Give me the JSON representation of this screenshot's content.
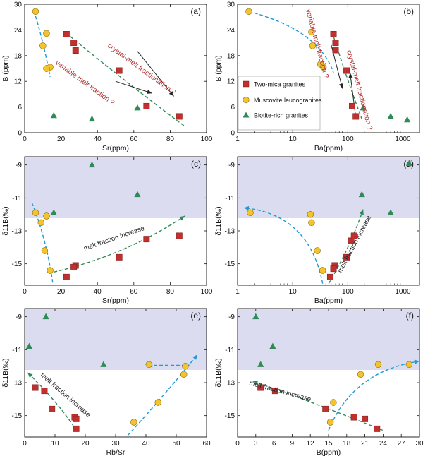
{
  "colors": {
    "two_mica": "#c0302e",
    "muscovite": "#f4c430",
    "biotite": "#2e8b57",
    "dashed_blue": "#1e9ad6",
    "dashed_green": "#2e8b57",
    "shade": "#dcdcf0"
  },
  "legend": {
    "items": [
      {
        "label": "Two-mica granites",
        "marker": "square"
      },
      {
        "label": "Muscovite leucogranites",
        "marker": "circle"
      },
      {
        "label": "Biotite-rich granites",
        "marker": "triangle"
      }
    ]
  },
  "chart_data": [
    {
      "id": "a",
      "type": "scatter",
      "letter": "(a)",
      "xlabel": "Sr(ppm)",
      "ylabel": "B (ppm)",
      "xlim": [
        0,
        100
      ],
      "ylim": [
        0,
        30
      ],
      "xticks": [
        "0",
        "20",
        "40",
        "60",
        "80",
        "100"
      ],
      "yticks": [
        "0",
        "6",
        "12",
        "18",
        "24",
        "30"
      ],
      "series": [
        {
          "name": "Two-mica granites",
          "points": [
            [
              23,
              23
            ],
            [
              27,
              21
            ],
            [
              28,
              19.2
            ],
            [
              52,
              14.5
            ],
            [
              67,
              6.2
            ],
            [
              85,
              3.8
            ]
          ]
        },
        {
          "name": "Muscovite leucogranites",
          "points": [
            [
              6,
              28.3
            ],
            [
              12,
              23.2
            ],
            [
              10,
              20.3
            ],
            [
              14,
              15.3
            ],
            [
              12,
              15
            ]
          ]
        },
        {
          "name": "Biotite-rich granites",
          "points": [
            [
              16,
              4
            ],
            [
              37,
              3.2
            ],
            [
              62,
              5.8
            ]
          ]
        }
      ],
      "annotations": [
        "crystal-melt fractionation ?",
        "variable melt fraction ?"
      ]
    },
    {
      "id": "b",
      "type": "scatter",
      "letter": "(b)",
      "xlabel": "Ba(ppm)",
      "ylabel": "B (ppm)",
      "xscale": "log",
      "xlim": [
        1,
        2000
      ],
      "ylim": [
        0,
        30
      ],
      "xticks": [
        "1",
        "10",
        "100",
        "1000"
      ],
      "yticks": [
        "0",
        "6",
        "12",
        "18",
        "24",
        "30"
      ],
      "series": [
        {
          "name": "Two-mica granites",
          "points": [
            [
              55,
              23
            ],
            [
              60,
              21
            ],
            [
              60,
              19.3
            ],
            [
              95,
              14.5
            ],
            [
              120,
              6.2
            ],
            [
              140,
              3.8
            ]
          ]
        },
        {
          "name": "Muscovite leucogranites",
          "points": [
            [
              1.6,
              28.3
            ],
            [
              22,
              23.5
            ],
            [
              23,
              20.3
            ],
            [
              32,
              16
            ],
            [
              36,
              15.3
            ]
          ]
        },
        {
          "name": "Biotite-rich granites",
          "points": [
            [
              190,
              5.8
            ],
            [
              600,
              3.8
            ],
            [
              1200,
              3
            ]
          ]
        }
      ],
      "annotations": [
        "variable melt fraction ?",
        "crystal-melt fractionation ?"
      ]
    },
    {
      "id": "c",
      "type": "scatter",
      "letter": "(c)",
      "xlabel": "Sr(ppm)",
      "ylabel": "δ11B(‰)",
      "xlim": [
        0,
        100
      ],
      "ylim": [
        -16.3,
        -8.5
      ],
      "xticks": [
        "0",
        "20",
        "40",
        "60",
        "80",
        "100"
      ],
      "yticks": [
        "-9",
        "-11",
        "-13",
        "-15"
      ],
      "shade_above": -12.2,
      "series": [
        {
          "name": "Two-mica granites",
          "points": [
            [
              23,
              -15.8
            ],
            [
              28,
              -15.1
            ],
            [
              27,
              -15.2
            ],
            [
              52,
              -14.6
            ],
            [
              67,
              -13.5
            ],
            [
              85,
              -13.3
            ]
          ]
        },
        {
          "name": "Muscovite leucogranites",
          "points": [
            [
              6,
              -11.9
            ],
            [
              12,
              -12.1
            ],
            [
              9,
              -12.5
            ],
            [
              11,
              -14.2
            ],
            [
              14,
              -15.4
            ]
          ]
        },
        {
          "name": "Biotite-rich granites",
          "points": [
            [
              16,
              -11.9
            ],
            [
              37,
              -9
            ],
            [
              62,
              -10.8
            ]
          ]
        }
      ],
      "annotations": [
        "melt fraction increase"
      ]
    },
    {
      "id": "d",
      "type": "scatter",
      "letter": "(d)",
      "xlabel": "Ba(ppm)",
      "ylabel": "δ11B(‰)",
      "xscale": "log",
      "xlim": [
        1,
        2000
      ],
      "ylim": [
        -16.3,
        -8.5
      ],
      "xticks": [
        "1",
        "10",
        "100",
        "1000"
      ],
      "yticks": [
        "-9",
        "-11",
        "-13",
        "-15"
      ],
      "shade_above": -12.2,
      "series": [
        {
          "name": "Two-mica granites",
          "points": [
            [
              48,
              -15.8
            ],
            [
              58,
              -15.1
            ],
            [
              55,
              -15.3
            ],
            [
              95,
              -14.6
            ],
            [
              115,
              -13.6
            ],
            [
              130,
              -13.3
            ]
          ]
        },
        {
          "name": "Muscovite leucogranites",
          "points": [
            [
              1.7,
              -11.9
            ],
            [
              21,
              -12
            ],
            [
              22,
              -12.5
            ],
            [
              28,
              -14.2
            ],
            [
              35,
              -15.4
            ]
          ]
        },
        {
          "name": "Biotite-rich granites",
          "points": [
            [
              180,
              -10.8
            ],
            [
              600,
              -11.9
            ],
            [
              1300,
              -8.9
            ]
          ]
        }
      ],
      "annotations": [
        "melt fraction increase"
      ]
    },
    {
      "id": "e",
      "type": "scatter",
      "letter": "(e)",
      "xlabel": "Rb/Sr",
      "ylabel": "δ11B(‰)",
      "xlim": [
        0,
        60
      ],
      "ylim": [
        -16.3,
        -8.5
      ],
      "xticks": [
        "0",
        "10",
        "20",
        "30",
        "40",
        "50",
        "60"
      ],
      "yticks": [
        "-9",
        "-11",
        "-13",
        "-15"
      ],
      "shade_above": -12.2,
      "series": [
        {
          "name": "Two-mica granites",
          "points": [
            [
              3.5,
              -13.3
            ],
            [
              6.5,
              -13.5
            ],
            [
              9,
              -14.6
            ],
            [
              16.5,
              -15.1
            ],
            [
              17,
              -15.2
            ],
            [
              17,
              -15.8
            ]
          ]
        },
        {
          "name": "Muscovite leucogranites",
          "points": [
            [
              41,
              -11.9
            ],
            [
              53,
              -12
            ],
            [
              52.5,
              -12.5
            ],
            [
              44,
              -14.2
            ],
            [
              36,
              -15.4
            ]
          ]
        },
        {
          "name": "Biotite-rich granites",
          "points": [
            [
              1.5,
              -10.8
            ],
            [
              7,
              -9
            ],
            [
              26,
              -11.9
            ]
          ]
        }
      ],
      "annotations": [
        "melt fraction increase"
      ]
    },
    {
      "id": "f",
      "type": "scatter",
      "letter": "(f)",
      "xlabel": "B(ppm)",
      "ylabel": "δ11B(‰)",
      "xlim": [
        0,
        30
      ],
      "ylim": [
        -16.3,
        -8.5
      ],
      "xticks": [
        "0",
        "3",
        "6",
        "9",
        "12",
        "15",
        "18",
        "21",
        "24",
        "27",
        "30"
      ],
      "yticks": [
        "-9",
        "-11",
        "-13",
        "-15"
      ],
      "shade_above": -12.2,
      "series": [
        {
          "name": "Two-mica granites",
          "points": [
            [
              3.8,
              -13.3
            ],
            [
              6.2,
              -13.5
            ],
            [
              14.5,
              -14.6
            ],
            [
              19.2,
              -15.1
            ],
            [
              21,
              -15.2
            ],
            [
              23,
              -15.8
            ]
          ]
        },
        {
          "name": "Muscovite leucogranites",
          "points": [
            [
              23.2,
              -11.9
            ],
            [
              28.3,
              -11.9
            ],
            [
              20.3,
              -12.5
            ],
            [
              15.8,
              -14.2
            ],
            [
              15.3,
              -15.4
            ]
          ]
        },
        {
          "name": "Biotite-rich granites",
          "points": [
            [
              3,
              -9
            ],
            [
              3.8,
              -11.9
            ],
            [
              5.8,
              -10.8
            ]
          ]
        }
      ],
      "annotations": [
        "melt fraction increase"
      ]
    }
  ]
}
